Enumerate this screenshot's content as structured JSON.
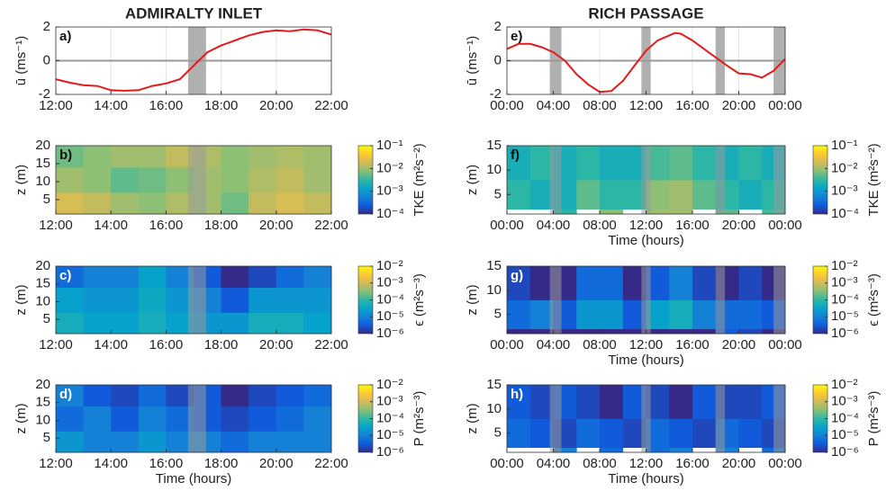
{
  "chart_data": [
    {
      "type": "line",
      "panel_label": "a)",
      "title": "ADMIRALTY INLET",
      "ylabel": "ū (ms⁻¹)",
      "color": "#e41a1c",
      "x": [
        12,
        12.5,
        13,
        13.5,
        14,
        14.5,
        15,
        15.5,
        16,
        16.5,
        17,
        17.5,
        18,
        18.5,
        19,
        19.5,
        20,
        20.5,
        21,
        21.5,
        22
      ],
      "values": [
        -1.1,
        -1.3,
        -1.45,
        -1.5,
        -1.75,
        -1.78,
        -1.75,
        -1.5,
        -1.35,
        -1.1,
        -0.3,
        0.5,
        0.9,
        1.2,
        1.5,
        1.7,
        1.8,
        1.75,
        1.85,
        1.8,
        1.55
      ],
      "slack_periods": [
        [
          16.8,
          17.45
        ]
      ],
      "xlim": [
        12,
        22
      ],
      "xticks": [
        {
          "value": 12,
          "label": "12:00"
        },
        {
          "value": 14,
          "label": "14:00"
        },
        {
          "value": 16,
          "label": "16:00"
        },
        {
          "value": 18,
          "label": "18:00"
        },
        {
          "value": 20,
          "label": "20:00"
        },
        {
          "value": 22,
          "label": "22:00"
        }
      ],
      "ylim": [
        -2,
        2
      ],
      "yticks": [
        -2,
        0,
        2
      ],
      "grid": true
    },
    {
      "type": "heatmap",
      "panel_label": "b)",
      "ylabel": "z (m)",
      "colorbar_label": "TKE (m²s⁻²)",
      "bins": [
        12,
        13,
        14,
        15,
        16,
        17,
        18,
        19,
        20,
        21,
        22
      ],
      "z_bins": [
        1,
        7,
        14,
        20
      ],
      "values": [
        [
          0.02,
          0.015,
          0.01,
          0.008,
          0.012,
          0.01,
          0.006,
          0.015,
          0.02,
          0.015
        ],
        [
          0.01,
          0.008,
          0.005,
          0.006,
          0.008,
          0.01,
          0.008,
          0.012,
          0.015,
          0.01
        ],
        [
          0.006,
          0.008,
          0.01,
          0.01,
          0.015,
          0.012,
          0.008,
          0.01,
          0.012,
          0.01
        ]
      ],
      "clim": [
        0.0001,
        0.1
      ],
      "cticks": [
        {
          "value": 0.0001,
          "label": "10⁻⁴"
        },
        {
          "value": 0.001,
          "label": "10⁻³"
        },
        {
          "value": 0.01,
          "label": "10⁻²"
        },
        {
          "value": 0.1,
          "label": "10⁻¹"
        }
      ],
      "xlim": [
        12,
        22
      ],
      "xticks": [
        {
          "value": 12,
          "label": "12:00"
        },
        {
          "value": 14,
          "label": "14:00"
        },
        {
          "value": 16,
          "label": "16:00"
        },
        {
          "value": 18,
          "label": "18:00"
        },
        {
          "value": 20,
          "label": "20:00"
        },
        {
          "value": 22,
          "label": "22:00"
        }
      ],
      "ylim": [
        1,
        20
      ],
      "yticks": [
        5,
        10,
        15,
        20
      ]
    },
    {
      "type": "heatmap",
      "panel_label": "c)",
      "ylabel": "z (m)",
      "colorbar_label": "ϵ (m²s⁻³)",
      "bins": [
        12,
        13,
        14,
        15,
        16,
        17,
        18,
        19,
        20,
        21,
        22
      ],
      "z_bins": [
        1,
        7,
        14,
        20
      ],
      "values": [
        [
          5e-05,
          3e-05,
          3e-05,
          5e-05,
          3e-05,
          2e-05,
          2e-05,
          5e-05,
          5e-05,
          3e-05
        ],
        [
          3e-05,
          2e-05,
          2e-05,
          4e-05,
          2e-05,
          1e-05,
          3e-06,
          2e-05,
          2e-05,
          2e-05
        ],
        [
          5e-06,
          1e-05,
          1e-05,
          3e-05,
          1e-05,
          3e-06,
          1e-06,
          2e-06,
          5e-06,
          1e-05
        ]
      ],
      "clim": [
        1e-06,
        0.01
      ],
      "cticks": [
        {
          "value": 1e-06,
          "label": "10⁻⁶"
        },
        {
          "value": 1e-05,
          "label": "10⁻⁵"
        },
        {
          "value": 0.0001,
          "label": "10⁻⁴"
        },
        {
          "value": 0.001,
          "label": "10⁻³"
        },
        {
          "value": 0.01,
          "label": "10⁻²"
        }
      ],
      "xlim": [
        12,
        22
      ],
      "xticks": [
        {
          "value": 12,
          "label": "12:00"
        },
        {
          "value": 14,
          "label": "14:00"
        },
        {
          "value": 16,
          "label": "16:00"
        },
        {
          "value": 18,
          "label": "18:00"
        },
        {
          "value": 20,
          "label": "20:00"
        },
        {
          "value": 22,
          "label": "22:00"
        }
      ],
      "ylim": [
        1,
        20
      ],
      "yticks": [
        5,
        10,
        15,
        20
      ]
    },
    {
      "type": "heatmap",
      "panel_label": "d)",
      "ylabel": "z (m)",
      "colorbar_label": "P (m²s⁻³)",
      "xlabel": "Time (hours)",
      "bins": [
        12,
        13,
        14,
        15,
        16,
        17,
        18,
        19,
        20,
        21,
        22
      ],
      "z_bins": [
        1,
        7,
        14,
        20
      ],
      "values": [
        [
          2e-05,
          1e-05,
          1e-05,
          2e-05,
          1e-05,
          1e-05,
          5e-06,
          1e-05,
          1e-05,
          1e-05
        ],
        [
          5e-06,
          1e-05,
          3e-06,
          1e-05,
          5e-06,
          3e-06,
          2e-06,
          3e-06,
          5e-06,
          1e-05
        ],
        [
          1e-05,
          3e-06,
          2e-06,
          5e-06,
          2e-06,
          3e-06,
          1e-06,
          2e-06,
          3e-06,
          5e-06
        ]
      ],
      "clim": [
        1e-06,
        0.01
      ],
      "cticks": [
        {
          "value": 1e-06,
          "label": "10⁻⁶"
        },
        {
          "value": 1e-05,
          "label": "10⁻⁵"
        },
        {
          "value": 0.0001,
          "label": "10⁻⁴"
        },
        {
          "value": 0.001,
          "label": "10⁻³"
        },
        {
          "value": 0.01,
          "label": "10⁻²"
        }
      ],
      "xlim": [
        12,
        22
      ],
      "xticks": [
        {
          "value": 12,
          "label": "12:00"
        },
        {
          "value": 14,
          "label": "14:00"
        },
        {
          "value": 16,
          "label": "16:00"
        },
        {
          "value": 18,
          "label": "18:00"
        },
        {
          "value": 20,
          "label": "20:00"
        },
        {
          "value": 22,
          "label": "22:00"
        }
      ],
      "ylim": [
        1,
        20
      ],
      "yticks": [
        5,
        10,
        15,
        20
      ]
    },
    {
      "type": "line",
      "panel_label": "e)",
      "title": "RICH PASSAGE",
      "ylabel": "ū (ms⁻¹)",
      "color": "#e41a1c",
      "x": [
        0,
        1,
        2,
        3,
        4,
        5,
        6,
        7,
        8,
        9,
        10,
        11,
        12,
        13,
        14,
        14.5,
        15,
        16,
        17,
        18,
        19,
        20,
        21,
        22,
        23,
        24
      ],
      "values": [
        0.7,
        1.0,
        1.0,
        0.8,
        0.5,
        0,
        -0.8,
        -1.4,
        -1.85,
        -1.8,
        -1.2,
        -0.3,
        0.6,
        1.2,
        1.5,
        1.65,
        1.6,
        1.2,
        0.7,
        0.2,
        -0.3,
        -0.75,
        -0.8,
        -1.0,
        -0.6,
        0.1
      ],
      "slack_periods": [
        [
          3.7,
          4.7
        ],
        [
          11.6,
          12.4
        ],
        [
          18,
          18.8
        ],
        [
          23,
          24
        ]
      ],
      "xlim": [
        0,
        24
      ],
      "xticks": [
        {
          "value": 0,
          "label": "00:00"
        },
        {
          "value": 4,
          "label": "04:00"
        },
        {
          "value": 8,
          "label": "08:00"
        },
        {
          "value": 12,
          "label": "12:00"
        },
        {
          "value": 16,
          "label": "16:00"
        },
        {
          "value": 20,
          "label": "20:00"
        },
        {
          "value": 24,
          "label": "00:00"
        }
      ],
      "ylim": [
        -2,
        2
      ],
      "yticks": [
        -2,
        0,
        2
      ],
      "grid": true
    },
    {
      "type": "heatmap",
      "panel_label": "f)",
      "ylabel": "z (m)",
      "colorbar_label": "TKE (m²s⁻²)",
      "xlabel": "Time (hours)",
      "bins": [
        0,
        2,
        4,
        6,
        8,
        10,
        12,
        14,
        16,
        18,
        20,
        22,
        24
      ],
      "z_bins": [
        1,
        2,
        8,
        15
      ],
      "values": [
        [
          null,
          null,
          0.003,
          null,
          0.008,
          null,
          0.01,
          0.01,
          null,
          0.005,
          null,
          0.004
        ],
        [
          0.003,
          0.002,
          0.002,
          0.005,
          0.003,
          0.003,
          0.008,
          0.01,
          0.005,
          0.003,
          0.002,
          0.003
        ],
        [
          0.002,
          0.003,
          0.002,
          0.003,
          0.002,
          0.002,
          0.004,
          0.005,
          0.003,
          0.002,
          0.003,
          0.002
        ]
      ],
      "clim": [
        0.0001,
        0.1
      ],
      "cticks": [
        {
          "value": 0.0001,
          "label": "10⁻⁴"
        },
        {
          "value": 0.001,
          "label": "10⁻³"
        },
        {
          "value": 0.01,
          "label": "10⁻²"
        },
        {
          "value": 0.1,
          "label": "10⁻¹"
        }
      ],
      "xlim": [
        0,
        24
      ],
      "xticks": [
        {
          "value": 0,
          "label": "00:00"
        },
        {
          "value": 4,
          "label": "04:00"
        },
        {
          "value": 8,
          "label": "08:00"
        },
        {
          "value": 12,
          "label": "12:00"
        },
        {
          "value": 16,
          "label": "16:00"
        },
        {
          "value": 20,
          "label": "20:00"
        },
        {
          "value": 24,
          "label": "00:00"
        }
      ],
      "ylim": [
        1,
        15
      ],
      "yticks": [
        5,
        10,
        15
      ]
    },
    {
      "type": "heatmap",
      "panel_label": "g)",
      "ylabel": "z (m)",
      "colorbar_label": "ϵ (m²s⁻³)",
      "xlabel": "Time (hours)",
      "bins": [
        0,
        2,
        4,
        6,
        8,
        10,
        12,
        14,
        16,
        18,
        20,
        22,
        24
      ],
      "z_bins": [
        1,
        2,
        8,
        15
      ],
      "values": [
        [
          1e-06,
          1e-06,
          1e-06,
          1e-06,
          1e-06,
          1e-06,
          1e-06,
          1e-06,
          1e-06,
          3e-06,
          2e-06,
          1e-06
        ],
        [
          5e-06,
          1e-05,
          3e-06,
          2e-05,
          2e-05,
          3e-06,
          3e-05,
          5e-05,
          1e-05,
          5e-06,
          5e-06,
          3e-06
        ],
        [
          2e-06,
          1e-06,
          1e-06,
          5e-06,
          5e-06,
          1e-06,
          3e-06,
          1e-05,
          2e-06,
          1e-06,
          2e-06,
          1e-06
        ]
      ],
      "clim": [
        1e-06,
        0.01
      ],
      "cticks": [
        {
          "value": 1e-06,
          "label": "10⁻⁶"
        },
        {
          "value": 1e-05,
          "label": "10⁻⁵"
        },
        {
          "value": 0.0001,
          "label": "10⁻⁴"
        },
        {
          "value": 0.001,
          "label": "10⁻³"
        },
        {
          "value": 0.01,
          "label": "10⁻²"
        }
      ],
      "xlim": [
        0,
        24
      ],
      "xticks": [
        {
          "value": 0,
          "label": "00:00"
        },
        {
          "value": 4,
          "label": "04:00"
        },
        {
          "value": 8,
          "label": "08:00"
        },
        {
          "value": 12,
          "label": "12:00"
        },
        {
          "value": 16,
          "label": "16:00"
        },
        {
          "value": 20,
          "label": "20:00"
        },
        {
          "value": 24,
          "label": "00:00"
        }
      ],
      "ylim": [
        1,
        15
      ],
      "yticks": [
        5,
        10,
        15
      ]
    },
    {
      "type": "heatmap",
      "panel_label": "h)",
      "ylabel": "z (m)",
      "colorbar_label": "P (m²s⁻³)",
      "xlabel": "Time (hours)",
      "bins": [
        0,
        2,
        4,
        6,
        8,
        10,
        12,
        14,
        16,
        18,
        20,
        22,
        24
      ],
      "z_bins": [
        1,
        2,
        8,
        15
      ],
      "values": [
        [
          null,
          null,
          1e-05,
          null,
          5e-06,
          null,
          5e-06,
          1e-05,
          null,
          1e-05,
          null,
          5e-06
        ],
        [
          5e-06,
          3e-06,
          2e-06,
          5e-06,
          3e-06,
          2e-06,
          5e-06,
          3e-06,
          2e-06,
          5e-06,
          3e-06,
          2e-06
        ],
        [
          3e-06,
          2e-06,
          3e-06,
          2e-06,
          1e-06,
          3e-06,
          2e-06,
          1e-06,
          3e-06,
          2e-06,
          2e-06,
          3e-06
        ]
      ],
      "clim": [
        1e-06,
        0.01
      ],
      "cticks": [
        {
          "value": 1e-06,
          "label": "10⁻⁶"
        },
        {
          "value": 1e-05,
          "label": "10⁻⁵"
        },
        {
          "value": 0.0001,
          "label": "10⁻⁴"
        },
        {
          "value": 0.001,
          "label": "10⁻³"
        },
        {
          "value": 0.01,
          "label": "10⁻²"
        }
      ],
      "xlim": [
        0,
        24
      ],
      "xticks": [
        {
          "value": 0,
          "label": "00:00"
        },
        {
          "value": 4,
          "label": "04:00"
        },
        {
          "value": 8,
          "label": "08:00"
        },
        {
          "value": 12,
          "label": "12:00"
        },
        {
          "value": 16,
          "label": "16:00"
        },
        {
          "value": 20,
          "label": "20:00"
        },
        {
          "value": 24,
          "label": "00:00"
        }
      ],
      "ylim": [
        1,
        15
      ],
      "yticks": [
        5,
        10,
        15
      ]
    }
  ]
}
